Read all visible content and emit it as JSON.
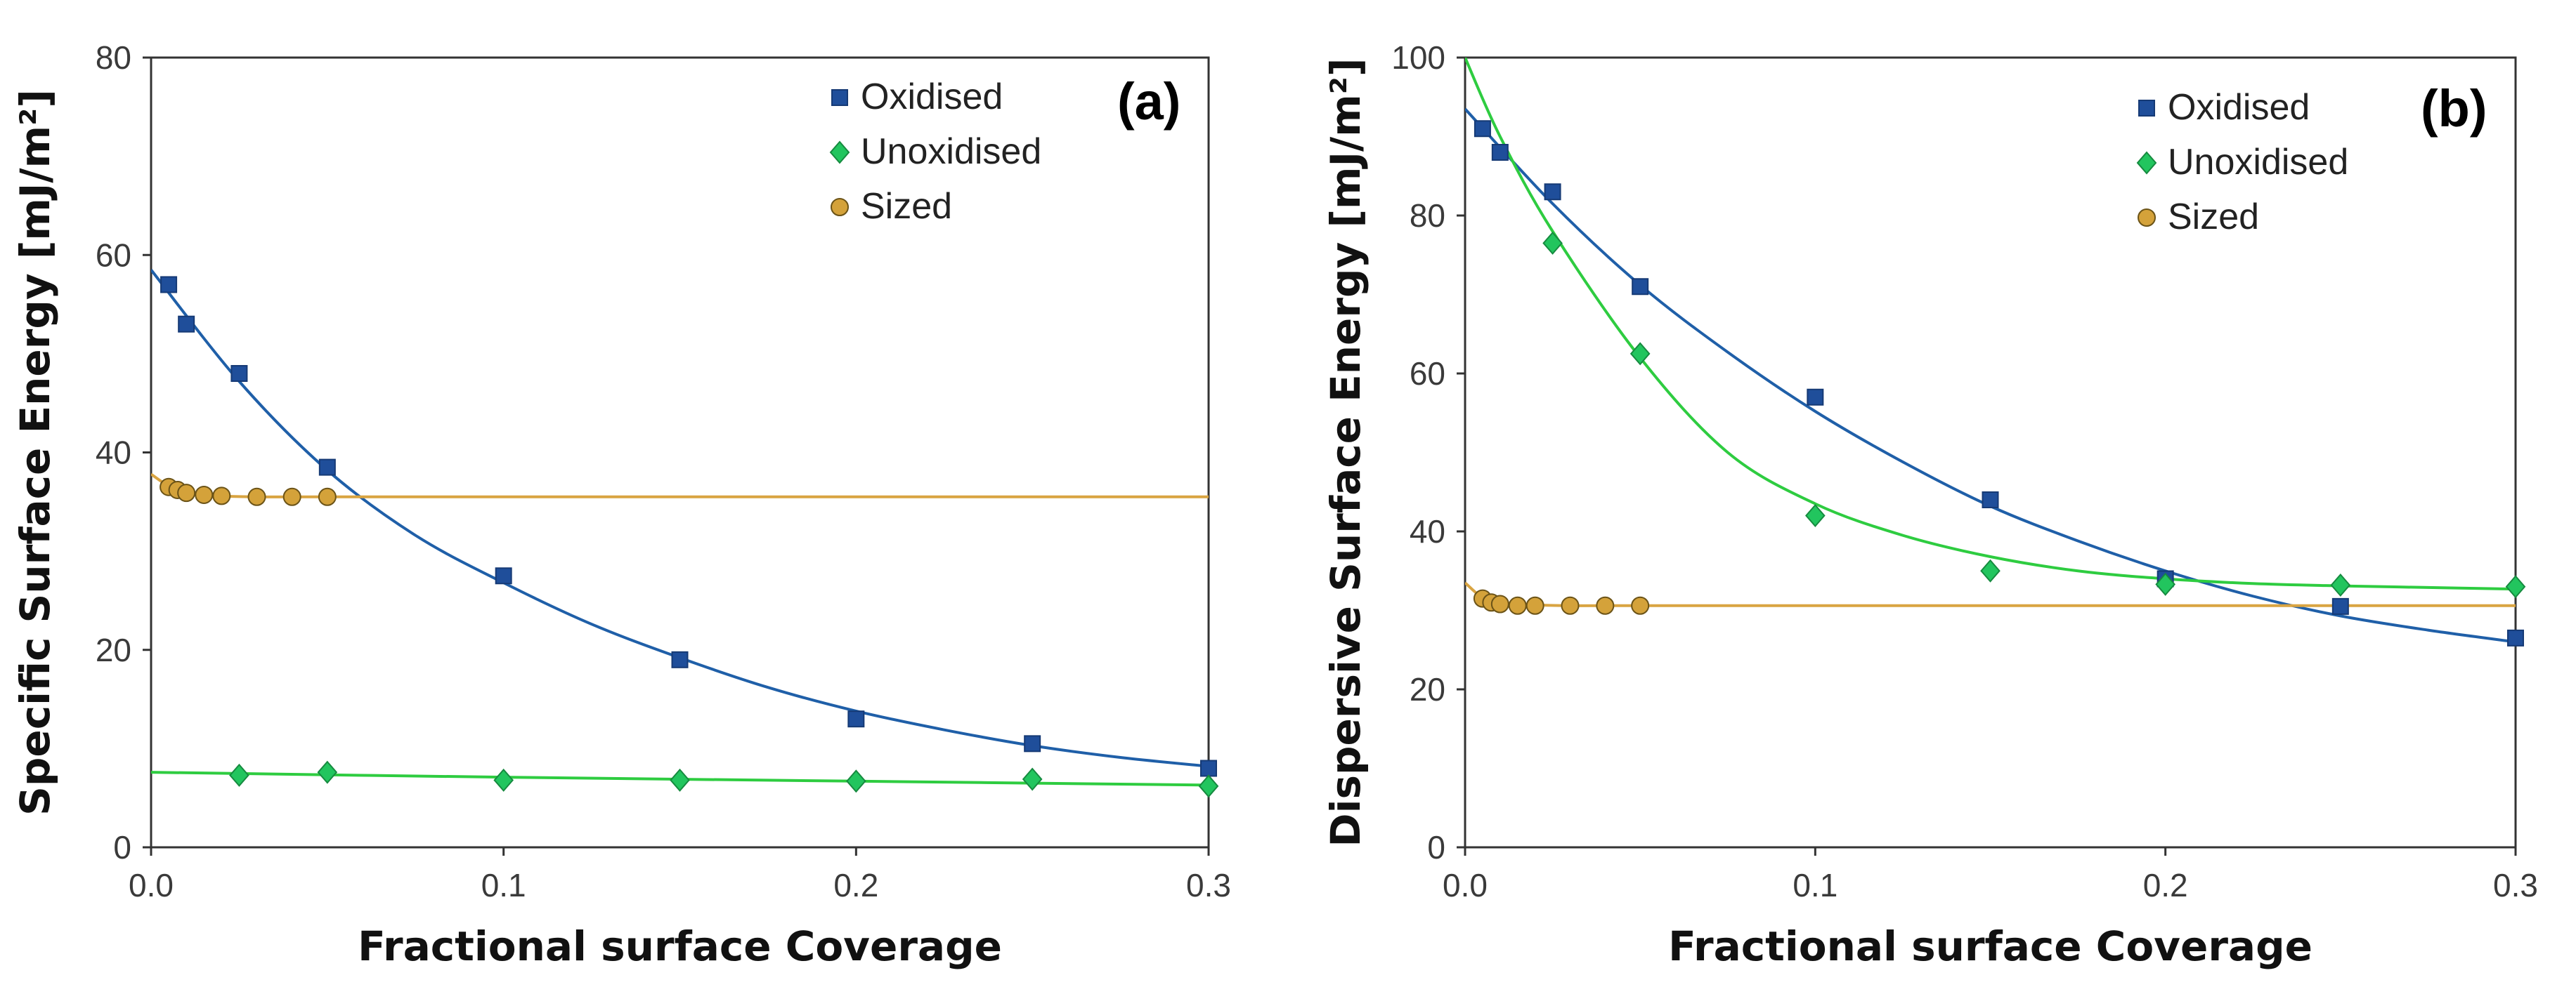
{
  "colors": {
    "oxidised": "#1f4e9a",
    "oxidised_curve": "#1f5fa8",
    "unoxidised": "#22c55e",
    "unoxidised_curve": "#2ecc40",
    "sized": "#d4a23a",
    "sized_curve": "#d9a441"
  },
  "chart_data": [
    {
      "type": "scatter",
      "panel_label": "(a)",
      "xlabel": "Fractional surface Coverage",
      "ylabel": "Specific Surface Energy [mJ/m²]",
      "xlim": [
        0,
        0.3
      ],
      "ylim": [
        0,
        80
      ],
      "x_ticks": [
        "0.0",
        "0.1",
        "0.2",
        "0.3"
      ],
      "y_ticks": [
        "0",
        "20",
        "40",
        "60",
        "80"
      ],
      "grid": false,
      "legend_position": "top-right",
      "series": [
        {
          "name": "Oxidised",
          "marker": "square",
          "x": [
            0.005,
            0.01,
            0.025,
            0.05,
            0.1,
            0.15,
            0.2,
            0.25,
            0.3
          ],
          "y": [
            57,
            53,
            48,
            38.5,
            27.5,
            19,
            13,
            10.5,
            8
          ]
        },
        {
          "name": "Unoxidised",
          "marker": "diamond",
          "x": [
            0.025,
            0.05,
            0.1,
            0.15,
            0.2,
            0.25,
            0.3
          ],
          "y": [
            7.3,
            7.6,
            6.8,
            6.8,
            6.7,
            6.9,
            6.2
          ]
        },
        {
          "name": "Sized",
          "marker": "circle",
          "x": [
            0.005,
            0.0075,
            0.01,
            0.015,
            0.02,
            0.03,
            0.04,
            0.05
          ],
          "y": [
            36.5,
            36.2,
            35.9,
            35.7,
            35.6,
            35.5,
            35.5,
            35.5
          ]
        }
      ],
      "fits": [
        {
          "series": "Oxidised",
          "x": [
            0,
            0.025,
            0.05,
            0.075,
            0.1,
            0.125,
            0.15,
            0.175,
            0.2,
            0.225,
            0.25,
            0.275,
            0.3
          ],
          "y": [
            58.5,
            47.2,
            38.2,
            31.6,
            26.8,
            22.6,
            19.2,
            16.2,
            13.8,
            11.9,
            10.3,
            9.1,
            8.2
          ]
        },
        {
          "series": "Unoxidised",
          "x": [
            0,
            0.1,
            0.2,
            0.3
          ],
          "y": [
            7.6,
            7.1,
            6.7,
            6.3
          ]
        },
        {
          "series": "Sized",
          "x": [
            0,
            0.005,
            0.01,
            0.02,
            0.03,
            0.05,
            0.1,
            0.2,
            0.3
          ],
          "y": [
            37.8,
            36.6,
            36.0,
            35.6,
            35.5,
            35.5,
            35.5,
            35.5,
            35.5
          ]
        }
      ]
    },
    {
      "type": "scatter",
      "panel_label": "(b)",
      "xlabel": "Fractional surface Coverage",
      "ylabel": "Dispersive Surface Energy [mJ/m²]",
      "xlim": [
        0,
        0.3
      ],
      "ylim": [
        0,
        100
      ],
      "x_ticks": [
        "0.0",
        "0.1",
        "0.2",
        "0.3"
      ],
      "y_ticks": [
        "0",
        "20",
        "40",
        "60",
        "80",
        "100"
      ],
      "grid": false,
      "legend_position": "top-right",
      "series": [
        {
          "name": "Oxidised",
          "marker": "square",
          "x": [
            0.005,
            0.01,
            0.025,
            0.05,
            0.1,
            0.15,
            0.2,
            0.25,
            0.3
          ],
          "y": [
            91,
            88,
            83,
            71,
            57,
            44,
            34,
            30.5,
            26.5
          ]
        },
        {
          "name": "Unoxidised",
          "marker": "diamond",
          "x": [
            0.025,
            0.05,
            0.1,
            0.15,
            0.2,
            0.25,
            0.3
          ],
          "y": [
            76.5,
            62.5,
            42,
            35,
            33.3,
            33.2,
            33
          ]
        },
        {
          "name": "Sized",
          "marker": "circle",
          "x": [
            0.005,
            0.0075,
            0.01,
            0.015,
            0.02,
            0.03,
            0.04,
            0.05
          ],
          "y": [
            31.5,
            31.0,
            30.8,
            30.6,
            30.6,
            30.6,
            30.6,
            30.6
          ]
        }
      ],
      "fits": [
        {
          "series": "Oxidised",
          "x": [
            0,
            0.025,
            0.05,
            0.075,
            0.1,
            0.125,
            0.15,
            0.175,
            0.2,
            0.225,
            0.25,
            0.275,
            0.3
          ],
          "y": [
            93.5,
            81.5,
            71.2,
            62.7,
            55.2,
            48.8,
            43.2,
            38.8,
            35.0,
            31.8,
            29.3,
            27.5,
            26.0
          ]
        },
        {
          "series": "Unoxidised",
          "x": [
            0,
            0.01,
            0.025,
            0.05,
            0.075,
            0.1,
            0.125,
            0.15,
            0.175,
            0.2,
            0.225,
            0.25,
            0.275,
            0.3
          ],
          "y": [
            100,
            90,
            78,
            62,
            50,
            43.5,
            39.5,
            36.8,
            35.0,
            34.0,
            33.4,
            33.1,
            32.9,
            32.7
          ]
        },
        {
          "series": "Sized",
          "x": [
            0,
            0.005,
            0.01,
            0.02,
            0.03,
            0.05,
            0.1,
            0.2,
            0.3
          ],
          "y": [
            33.5,
            31.6,
            31.0,
            30.7,
            30.6,
            30.6,
            30.6,
            30.6,
            30.6
          ]
        }
      ]
    }
  ]
}
